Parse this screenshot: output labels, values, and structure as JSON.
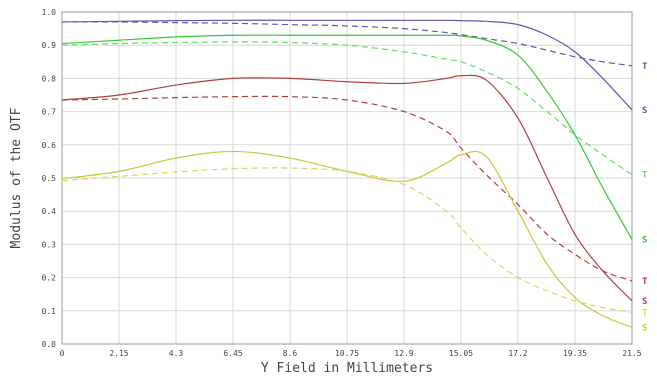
{
  "chart_data": {
    "type": "line",
    "title": "",
    "xlabel": "Y Field in Millimeters",
    "ylabel": "Modulus of the OTF",
    "xlim": [
      0,
      21.5
    ],
    "ylim": [
      0,
      1
    ],
    "grid": true,
    "legend": "right-edge letters",
    "x_tick_labels": [
      "0",
      "2.15",
      "4.3",
      "6.45",
      "8.6",
      "10.75",
      "12.9",
      "15.05",
      "17.2",
      "19.35",
      "21.5"
    ],
    "y_tick_labels": [
      "0.0",
      "0.1",
      "0.2",
      "0.3",
      "0.4",
      "0.5",
      "0.6",
      "0.7",
      "0.8",
      "0.9",
      "1.0"
    ],
    "x": [
      0,
      2.15,
      4.3,
      6.45,
      8.6,
      10.75,
      12.9,
      14.5,
      15.05,
      16,
      17.2,
      18.3,
      19.35,
      20.4,
      21.5
    ],
    "series": [
      {
        "label": "S",
        "color": "#5a5aaa",
        "dash": false,
        "values": [
          0.97,
          0.972,
          0.974,
          0.975,
          0.975,
          0.975,
          0.975,
          0.975,
          0.974,
          0.972,
          0.962,
          0.93,
          0.88,
          0.8,
          0.705
        ]
      },
      {
        "label": "T",
        "color": "#5a5aaa",
        "dash": true,
        "values": [
          0.97,
          0.97,
          0.968,
          0.966,
          0.962,
          0.958,
          0.95,
          0.938,
          0.932,
          0.92,
          0.905,
          0.885,
          0.865,
          0.85,
          0.838
        ]
      },
      {
        "label": "S",
        "color": "#33cc33",
        "dash": false,
        "values": [
          0.905,
          0.915,
          0.925,
          0.93,
          0.93,
          0.93,
          0.93,
          0.93,
          0.928,
          0.915,
          0.87,
          0.76,
          0.63,
          0.47,
          0.315
        ]
      },
      {
        "label": "T",
        "color": "#66dd66",
        "dash": true,
        "values": [
          0.9,
          0.905,
          0.908,
          0.91,
          0.908,
          0.9,
          0.88,
          0.858,
          0.85,
          0.82,
          0.77,
          0.7,
          0.63,
          0.57,
          0.51
        ]
      },
      {
        "label": "S",
        "color": "#b04040",
        "dash": false,
        "values": [
          0.735,
          0.75,
          0.78,
          0.8,
          0.8,
          0.79,
          0.785,
          0.8,
          0.808,
          0.795,
          0.68,
          0.5,
          0.33,
          0.22,
          0.13
        ]
      },
      {
        "label": "T",
        "color": "#b04040",
        "dash": true,
        "values": [
          0.735,
          0.738,
          0.742,
          0.745,
          0.745,
          0.735,
          0.7,
          0.64,
          0.59,
          0.51,
          0.42,
          0.33,
          0.27,
          0.22,
          0.19
        ]
      },
      {
        "label": "S",
        "color": "#c8c838",
        "dash": false,
        "values": [
          0.498,
          0.52,
          0.56,
          0.58,
          0.56,
          0.52,
          0.49,
          0.545,
          0.57,
          0.565,
          0.4,
          0.24,
          0.14,
          0.085,
          0.05
        ]
      },
      {
        "label": "T",
        "color": "#d8d860",
        "dash": true,
        "values": [
          0.492,
          0.505,
          0.518,
          0.528,
          0.53,
          0.52,
          0.48,
          0.4,
          0.35,
          0.27,
          0.2,
          0.16,
          0.13,
          0.11,
          0.095
        ]
      }
    ]
  }
}
